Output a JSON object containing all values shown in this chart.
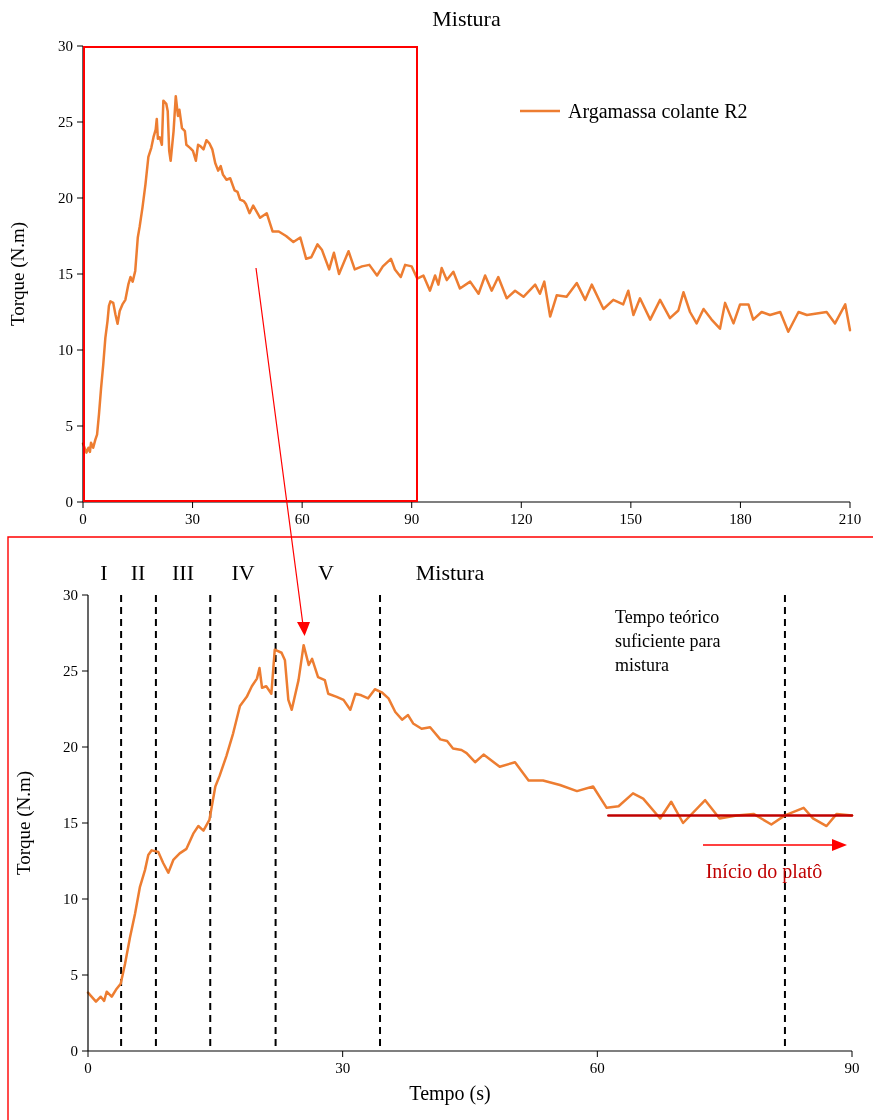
{
  "chart_data": [
    {
      "type": "line",
      "title": "Mistura",
      "ylabel": "Torque (N.m)",
      "xlim": [
        0,
        210
      ],
      "xticks": [
        0,
        30,
        60,
        90,
        120,
        150,
        180,
        210
      ],
      "ylim": [
        0,
        30
      ],
      "yticks": [
        0,
        5,
        10,
        15,
        20,
        25,
        30
      ],
      "legend": "top right",
      "series": [
        {
          "name": "Argamassa colante R2",
          "color": "#ed7d31",
          "x": [
            0,
            0.94,
            1.5,
            1.9,
            2.2,
            2.79,
            3.38,
            3.85,
            4.36,
            4.95,
            5.54,
            6.12,
            6.71,
            7.1,
            7.5,
            8.28,
            8.87,
            9.46,
            10.05,
            10.8,
            11.6,
            12.4,
            13.0,
            13.6,
            14.3,
            15.0,
            15.5,
            16.3,
            17.1,
            17.9,
            18.7,
            19.3,
            19.9,
            20.2,
            20.5,
            21.0,
            21.6,
            22.0,
            22.8,
            23.2,
            23.6,
            24.0,
            24.8,
            25.4,
            26.0,
            26.4,
            27.1,
            27.9,
            28.3,
            29.3,
            30.1,
            30.9,
            31.5,
            32.2,
            33.0,
            33.8,
            34.6,
            35.4,
            36.2,
            37.0,
            37.7,
            38.3,
            39.3,
            40.3,
            41.5,
            42.3,
            43.0,
            44.0,
            44.6,
            45.6,
            46.6,
            48.5,
            50.3,
            51.9,
            53.6,
            55.6,
            57.6,
            59.5,
            61.1,
            62.5,
            64.2,
            65.4,
            67.4,
            68.7,
            70.1,
            72.7,
            74.4,
            76.4,
            78.4,
            80.5,
            82.1,
            84.3,
            85.4,
            87.0,
            88.2,
            90.0,
            91.5,
            93.2,
            95.0,
            96.4,
            97.3,
            98.2,
            99.6,
            101.4,
            103.2,
            106.0,
            108.3,
            110.1,
            111.9,
            113.7,
            116.0,
            118.3,
            120.6,
            123.8,
            125.1,
            126.3,
            127.9,
            129.7,
            132.4,
            135.2,
            137.5,
            139.3,
            142.5,
            145.2,
            147.9,
            149.3,
            150.7,
            152.5,
            155.3,
            158.0,
            160.7,
            163.0,
            164.4,
            166.2,
            168.0,
            169.9,
            172.1,
            174.4,
            175.8,
            178.1,
            179.9,
            182.2,
            183.5,
            185.8,
            188.1,
            190.9,
            193.1,
            195.9,
            198.2,
            200.9,
            203.6,
            205.9,
            208.7,
            210
          ],
          "values": [
            3.84,
            3.25,
            3.57,
            3.3,
            3.9,
            3.57,
            4.1,
            4.43,
            5.73,
            7.49,
            9.03,
            10.8,
            11.9,
            12.9,
            13.2,
            13.1,
            12.35,
            11.73,
            12.57,
            13.0,
            13.3,
            14.3,
            14.8,
            14.5,
            15.2,
            17.4,
            18.1,
            19.4,
            20.9,
            22.7,
            23.3,
            24.0,
            24.5,
            25.2,
            23.9,
            24.0,
            23.5,
            26.4,
            26.2,
            25.7,
            23.1,
            22.45,
            24.4,
            26.7,
            25.4,
            25.8,
            24.6,
            24.4,
            23.5,
            23.3,
            23.1,
            22.45,
            23.5,
            23.4,
            23.2,
            23.8,
            23.6,
            23.2,
            22.3,
            21.8,
            22.1,
            21.55,
            21.2,
            21.3,
            20.5,
            20.4,
            19.9,
            19.8,
            19.6,
            19.0,
            19.5,
            18.7,
            19.0,
            17.8,
            17.8,
            17.5,
            17.1,
            17.4,
            16.0,
            16.1,
            16.95,
            16.6,
            15.3,
            16.4,
            15.0,
            16.5,
            15.3,
            15.5,
            15.6,
            14.9,
            15.5,
            16.0,
            15.3,
            14.8,
            15.6,
            15.5,
            14.7,
            14.9,
            13.9,
            14.9,
            14.3,
            15.4,
            14.6,
            15.15,
            14.05,
            14.5,
            13.7,
            14.9,
            13.9,
            14.8,
            13.4,
            13.9,
            13.5,
            14.3,
            13.7,
            14.5,
            12.2,
            13.6,
            13.5,
            14.4,
            13.3,
            14.3,
            12.7,
            13.3,
            13.0,
            13.9,
            12.3,
            13.4,
            12.0,
            13.3,
            12.1,
            12.6,
            13.8,
            12.5,
            11.75,
            12.7,
            12.0,
            11.4,
            13.1,
            11.75,
            13.0,
            13.0,
            12.0,
            12.5,
            12.3,
            12.5,
            11.2,
            12.5,
            12.3,
            12.4,
            12.5,
            11.75,
            13.0,
            11.3
          ]
        }
      ]
    },
    {
      "type": "line",
      "title": "Mistura",
      "xlabel": "Tempo (s)",
      "ylabel": "Torque (N.m)",
      "xlim": [
        0,
        90
      ],
      "xticks": [
        0,
        30,
        60,
        90
      ],
      "ylim": [
        0,
        30
      ],
      "yticks": [
        0,
        5,
        10,
        15,
        20,
        25,
        30
      ],
      "series": [
        {
          "color": "#ed7d31",
          "x": [
            0,
            0.94,
            1.5,
            1.9,
            2.2,
            2.79,
            3.38,
            3.85,
            4.36,
            4.95,
            5.54,
            6.12,
            6.71,
            7.1,
            7.5,
            8.28,
            8.87,
            9.46,
            10.05,
            10.8,
            11.6,
            12.4,
            13.0,
            13.6,
            14.3,
            15.0,
            15.5,
            16.3,
            17.1,
            17.9,
            18.7,
            19.3,
            19.9,
            20.2,
            20.5,
            21.0,
            21.6,
            22.0,
            22.8,
            23.2,
            23.6,
            24.0,
            24.8,
            25.4,
            26.0,
            26.4,
            27.1,
            27.9,
            28.3,
            29.3,
            30.1,
            30.9,
            31.5,
            32.2,
            33.0,
            33.8,
            34.6,
            35.4,
            36.2,
            37.0,
            37.7,
            38.3,
            39.3,
            40.3,
            41.5,
            42.3,
            43.0,
            44.0,
            44.6,
            45.6,
            46.6,
            48.5,
            50.3,
            51.9,
            53.6,
            55.6,
            57.6,
            59.5,
            61.1,
            62.5,
            64.2,
            65.4,
            67.4,
            68.7,
            70.1,
            72.7,
            74.4,
            76.4,
            78.4,
            80.5,
            82.1,
            84.3,
            85.4,
            87.0,
            88.2,
            90.0
          ],
          "values": [
            3.84,
            3.25,
            3.57,
            3.3,
            3.9,
            3.57,
            4.1,
            4.43,
            5.73,
            7.49,
            9.03,
            10.8,
            11.9,
            12.9,
            13.2,
            13.1,
            12.35,
            11.73,
            12.57,
            13.0,
            13.3,
            14.3,
            14.8,
            14.5,
            15.2,
            17.4,
            18.1,
            19.4,
            20.9,
            22.7,
            23.3,
            24.0,
            24.5,
            25.2,
            23.9,
            24.0,
            23.5,
            26.4,
            26.2,
            25.7,
            23.1,
            22.45,
            24.4,
            26.7,
            25.4,
            25.8,
            24.6,
            24.4,
            23.5,
            23.3,
            23.1,
            22.45,
            23.5,
            23.4,
            23.2,
            23.8,
            23.6,
            23.2,
            22.3,
            21.8,
            22.1,
            21.55,
            21.2,
            21.3,
            20.5,
            20.4,
            19.9,
            19.8,
            19.6,
            19.0,
            19.5,
            18.7,
            19.0,
            17.8,
            17.8,
            17.5,
            17.1,
            17.4,
            16.0,
            16.1,
            16.95,
            16.6,
            15.3,
            16.4,
            15.0,
            16.5,
            15.3,
            15.5,
            15.6,
            14.9,
            15.5,
            16.0,
            15.3,
            14.8,
            15.6,
            15.5
          ]
        },
        {
          "type": "line",
          "color": "#c00000",
          "x": [
            61.3,
            90
          ],
          "values": [
            15.5,
            15.5
          ]
        }
      ],
      "ref_lines": [
        {
          "axis": "x",
          "value": 3.9,
          "color": "#000000",
          "line_style": "dashed"
        },
        {
          "axis": "x",
          "value": 8.0,
          "color": "#000000",
          "line_style": "dashed"
        },
        {
          "axis": "x",
          "value": 14.4,
          "color": "#000000",
          "line_style": "dashed"
        },
        {
          "axis": "x",
          "value": 22.1,
          "color": "#000000",
          "line_style": "dashed"
        },
        {
          "axis": "x",
          "value": 34.4,
          "color": "#000000",
          "line_style": "dashed"
        },
        {
          "axis": "x",
          "value": 82.1,
          "color": "#000000",
          "line_style": "dashed",
          "label": "Tempo teórico suficiente para mistura"
        }
      ],
      "annotations": [
        "I",
        "II",
        "III",
        "IV",
        "V",
        "Início do platô"
      ]
    }
  ]
}
